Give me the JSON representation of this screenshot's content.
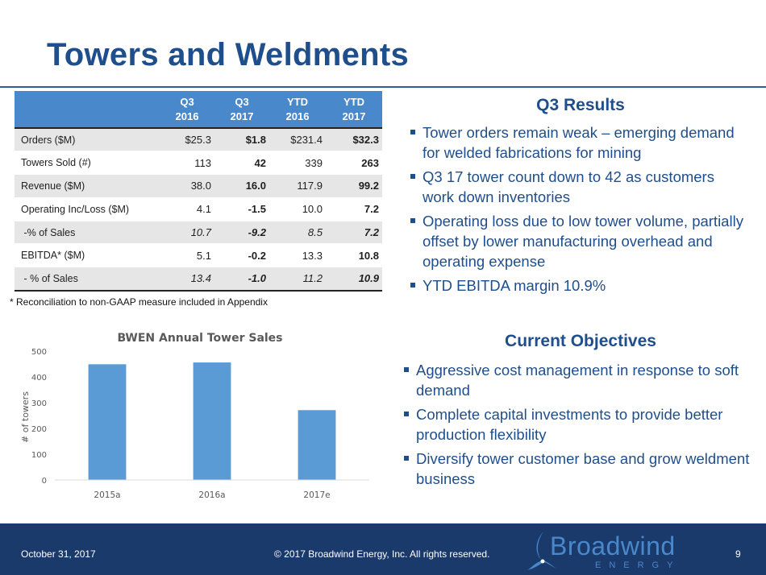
{
  "title": "Towers and Weldments",
  "table": {
    "headers": [
      {
        "l1": "Q3",
        "l2": "2016"
      },
      {
        "l1": "Q3",
        "l2": "2017"
      },
      {
        "l1": "YTD",
        "l2": "2016"
      },
      {
        "l1": "YTD",
        "l2": "2017"
      }
    ],
    "rows": [
      {
        "label": "Orders ($M)",
        "values": [
          "$25.3",
          "$1.8",
          "$231.4",
          "$32.3"
        ]
      },
      {
        "label": "Towers Sold (#)",
        "values": [
          "113",
          "42",
          "339",
          "263"
        ]
      },
      {
        "label": "Revenue ($M)",
        "values": [
          "38.0",
          "16.0",
          "117.9",
          "99.2"
        ]
      },
      {
        "label": "Operating Inc/Loss ($M)",
        "values": [
          "4.1",
          "-1.5",
          "10.0",
          "7.2"
        ]
      },
      {
        "label": " -% of Sales",
        "values": [
          "10.7",
          "-9.2",
          "8.5",
          "7.2"
        ]
      },
      {
        "label": "EBITDA* ($M)",
        "values": [
          "5.1",
          "-0.2",
          "13.3",
          "10.8"
        ]
      },
      {
        "label": " - % of Sales",
        "values": [
          "13.4",
          "-1.0",
          "11.2",
          "10.9"
        ]
      }
    ],
    "footnote": "* Reconciliation to non-GAAP measure included in Appendix"
  },
  "q3_results": {
    "heading": "Q3 Results",
    "bullets": [
      "Tower orders remain weak – emerging demand for welded fabrications for mining",
      "Q3 17 tower count down to 42 as customers work down inventories",
      "Operating loss due to low tower volume, partially offset by lower manufacturing overhead and operating expense",
      "YTD EBITDA margin 10.9%"
    ]
  },
  "objectives": {
    "heading": "Current Objectives",
    "bullets": [
      "Aggressive cost management in response to soft demand",
      "Complete capital investments to provide better production flexibility",
      "Diversify tower customer base and grow weldment business"
    ]
  },
  "chart_data": {
    "type": "bar",
    "title": "BWEN Annual Tower Sales",
    "ylabel": "# of towers",
    "xlabel": "",
    "categories": [
      "2015a",
      "2016a",
      "2017e"
    ],
    "values": [
      449,
      456,
      271
    ],
    "ylim": [
      0,
      500
    ],
    "yticks": [
      0,
      100,
      200,
      300,
      400,
      500
    ],
    "bar_color": "#5b9bd5",
    "grid": false
  },
  "footer": {
    "date": "October 31, 2017",
    "copyright": "© 2017 Broadwind Energy, Inc. All rights reserved.",
    "page": "9",
    "logo_word": "Broadwind",
    "logo_sub": "ENERGY"
  },
  "colors": {
    "title": "#1f4e8c",
    "header_bg": "#4a88cc",
    "footer_bg": "#1a3a6b"
  }
}
